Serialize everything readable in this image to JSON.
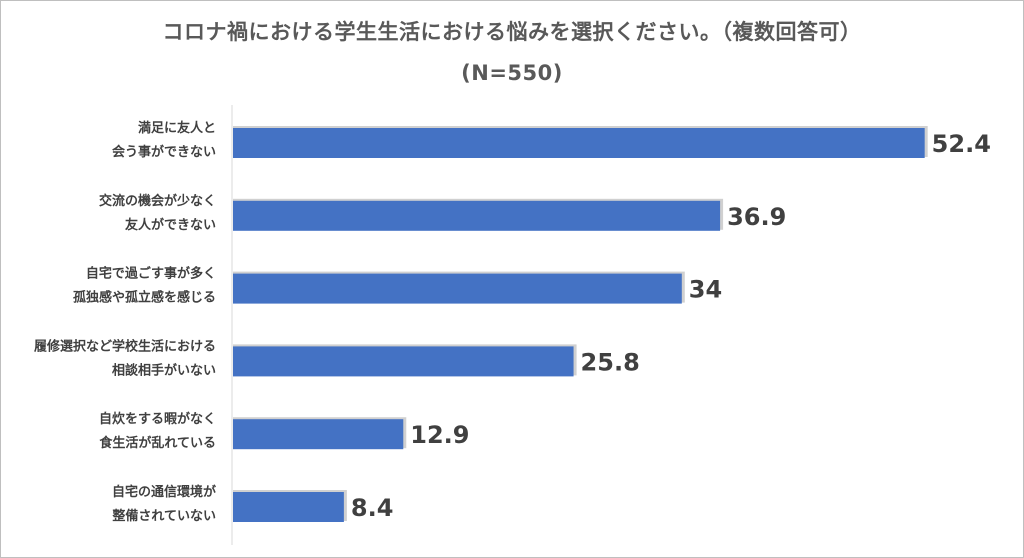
{
  "chart_data": {
    "type": "bar",
    "orientation": "horizontal",
    "title": "コロナ禍における学生生活における悩みを選択ください。（複数回答可）",
    "subtitle": "(N=550)",
    "categories": [
      [
        "満足に友人と",
        "会う事ができない"
      ],
      [
        "交流の機会が少なく",
        "友人ができない"
      ],
      [
        "自宅で過ごす事が多く",
        "孤独感や孤立感を感じる"
      ],
      [
        "履修選択など学校生活における",
        "相談相手がいない"
      ],
      [
        "自炊をする暇がなく",
        "食生活が乱れている"
      ],
      [
        "自宅の通信環境が",
        "整備されていない"
      ]
    ],
    "values": [
      52.4,
      36.9,
      34,
      25.8,
      12.9,
      8.4
    ],
    "value_labels": [
      "52.4",
      "36.9",
      "34",
      "25.8",
      "12.9",
      "8.4"
    ],
    "xlim": [
      0,
      60
    ],
    "grid": false,
    "legend": "none",
    "bar_color": "#4472c4"
  }
}
